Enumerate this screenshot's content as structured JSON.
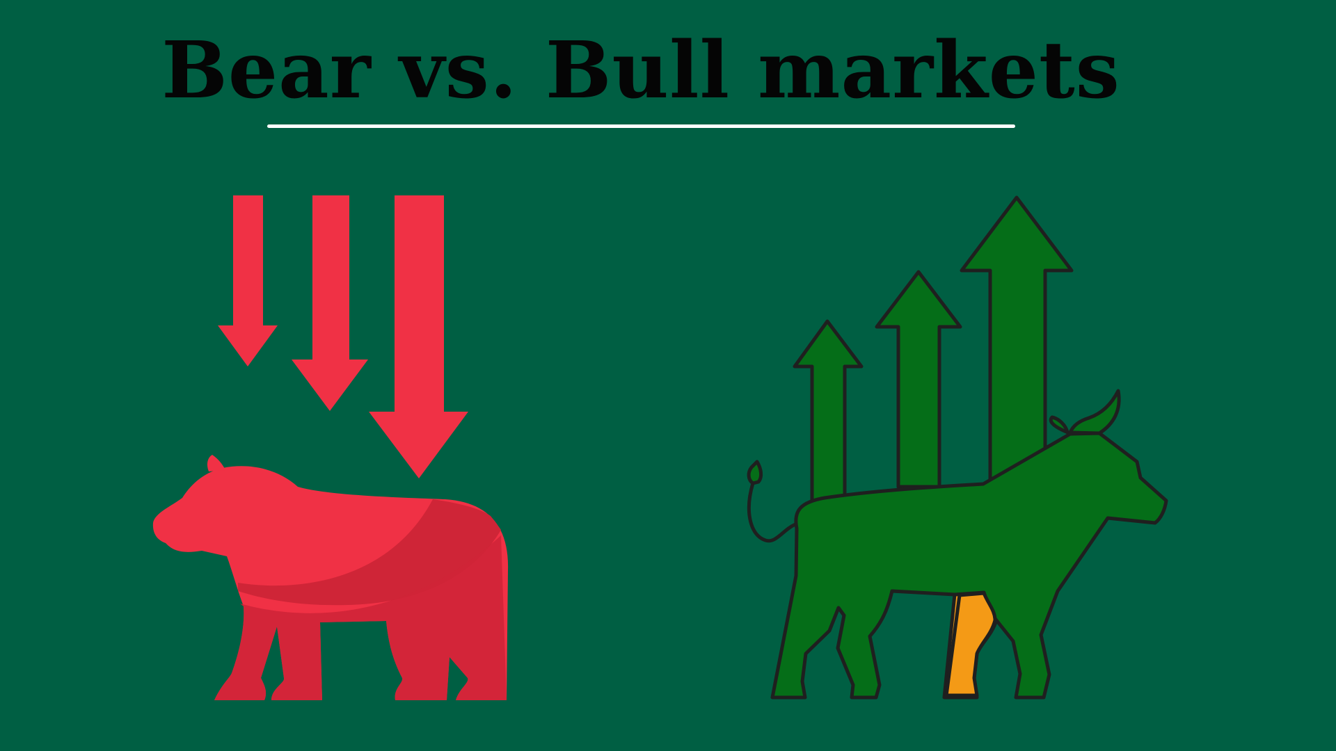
{
  "title": "Bear vs. Bull markets",
  "colors": {
    "background": "#005f43",
    "bear_red": "#f03145",
    "bear_shadow": "#cf2537",
    "bull_green": "#056e18",
    "bull_leg_orange": "#f49a16",
    "outline": "#1f1f1f",
    "underline": "#ffffff"
  },
  "illustrations": {
    "bear": "bear-icon",
    "bear_arrows": "down-arrow-icon",
    "bull": "bull-icon",
    "bull_arrows": "up-arrow-icon"
  }
}
